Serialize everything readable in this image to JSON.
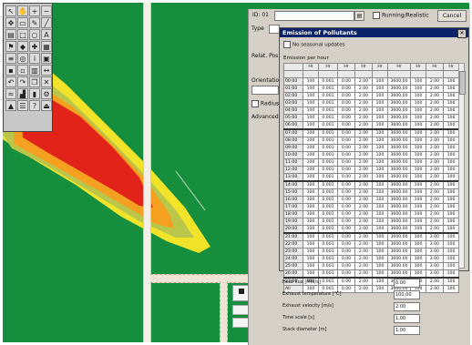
{
  "toolbox": {
    "tools": [
      {
        "icon": "pointer-icon",
        "glyph": "↖"
      },
      {
        "icon": "hand-icon",
        "glyph": "✋"
      },
      {
        "icon": "zoom-in-icon",
        "glyph": "+"
      },
      {
        "icon": "zoom-out-icon",
        "glyph": "−"
      },
      {
        "icon": "pan-icon",
        "glyph": "✥"
      },
      {
        "icon": "select-icon",
        "glyph": "▭"
      },
      {
        "icon": "pencil-icon",
        "glyph": "✎"
      },
      {
        "icon": "line-icon",
        "glyph": "╱"
      },
      {
        "icon": "ruler-icon",
        "glyph": "▤"
      },
      {
        "icon": "rect-icon",
        "glyph": "□"
      },
      {
        "icon": "ellipse-icon",
        "glyph": "○"
      },
      {
        "icon": "text-icon",
        "glyph": "A"
      },
      {
        "icon": "flag-icon",
        "glyph": "⚑"
      },
      {
        "icon": "source-icon",
        "glyph": "◆"
      },
      {
        "icon": "receptor-icon",
        "glyph": "✚"
      },
      {
        "icon": "grid-icon",
        "glyph": "▦"
      },
      {
        "icon": "layer-icon",
        "glyph": "≡"
      },
      {
        "icon": "contour-icon",
        "glyph": "◎"
      },
      {
        "icon": "info-icon",
        "glyph": "i"
      },
      {
        "icon": "print-icon",
        "glyph": "▣"
      },
      {
        "icon": "save-icon",
        "glyph": "▪"
      },
      {
        "icon": "open-icon",
        "glyph": "▫"
      },
      {
        "icon": "chart-icon",
        "glyph": "▥"
      },
      {
        "icon": "measure-icon",
        "glyph": "↔"
      },
      {
        "icon": "undo-icon",
        "glyph": "↶"
      },
      {
        "icon": "redo-icon",
        "glyph": "↷"
      },
      {
        "icon": "copy-icon",
        "glyph": "❐"
      },
      {
        "icon": "delete-icon",
        "glyph": "✕"
      },
      {
        "icon": "wind-icon",
        "glyph": "≈"
      },
      {
        "icon": "building-icon",
        "glyph": "▟"
      },
      {
        "icon": "stack-icon",
        "glyph": "▮"
      },
      {
        "icon": "settings-icon",
        "glyph": "⚙"
      },
      {
        "icon": "north-icon",
        "glyph": "▲"
      },
      {
        "icon": "legend-icon",
        "glyph": "☰"
      },
      {
        "icon": "help-icon",
        "glyph": "?"
      },
      {
        "icon": "exit-icon",
        "glyph": "⏏"
      }
    ]
  },
  "dialog": {
    "id_label": "ID: 01",
    "use_checkbox_label": "Running/Realistic",
    "cancel_label": "Cancel",
    "row_labels": [
      "Type",
      "Relat. Pos.",
      "Orientation",
      "Radius",
      "Advanced"
    ]
  },
  "popup": {
    "title": "Emission of Pollutants",
    "option_label": "No seasonal updates",
    "table_label": "Emission per hour",
    "headers": [
      "",
      "Hr",
      "Hr",
      "Hr",
      "Hr",
      "Hr",
      "Hr",
      "Hr",
      "Hr",
      "Hr"
    ],
    "subheaders": [
      "",
      "",
      "",
      "",
      "",
      "",
      "",
      "",
      "",
      ""
    ],
    "rows": [
      [
        "00:00",
        "100",
        "0.001",
        "0.00",
        "2.00",
        "100",
        "3600.00",
        "100",
        "2.00",
        "100"
      ],
      [
        "01:00",
        "100",
        "0.001",
        "0.00",
        "2.00",
        "100",
        "3600.00",
        "100",
        "2.00",
        "100"
      ],
      [
        "02:00",
        "100",
        "0.001",
        "0.00",
        "2.00",
        "100",
        "3600.00",
        "100",
        "2.00",
        "100"
      ],
      [
        "03:00",
        "100",
        "0.001",
        "0.00",
        "2.00",
        "100",
        "3600.00",
        "100",
        "2.00",
        "100"
      ],
      [
        "04:00",
        "100",
        "0.001",
        "0.00",
        "2.00",
        "100",
        "3600.00",
        "100",
        "2.00",
        "100"
      ],
      [
        "05:00",
        "100",
        "0.001",
        "0.00",
        "2.00",
        "100",
        "3600.00",
        "100",
        "2.00",
        "100"
      ],
      [
        "06:00",
        "100",
        "0.001",
        "0.00",
        "2.00",
        "100",
        "3600.00",
        "100",
        "2.00",
        "100"
      ],
      [
        "07:00",
        "100",
        "0.001",
        "0.00",
        "2.00",
        "100",
        "3600.00",
        "100",
        "2.00",
        "100"
      ],
      [
        "08:00",
        "100",
        "0.001",
        "0.00",
        "2.00",
        "100",
        "3600.00",
        "100",
        "2.00",
        "100"
      ],
      [
        "09:00",
        "100",
        "0.001",
        "0.00",
        "2.00",
        "100",
        "3600.00",
        "100",
        "2.00",
        "100"
      ],
      [
        "10:00",
        "100",
        "0.001",
        "0.00",
        "2.00",
        "100",
        "3600.00",
        "100",
        "2.00",
        "100"
      ],
      [
        "11:00",
        "100",
        "0.001",
        "0.00",
        "2.00",
        "100",
        "3600.00",
        "100",
        "2.00",
        "100"
      ],
      [
        "12:00",
        "100",
        "0.001",
        "0.00",
        "2.00",
        "100",
        "3600.00",
        "100",
        "2.00",
        "100"
      ],
      [
        "13:00",
        "100",
        "0.001",
        "0.00",
        "2.00",
        "100",
        "3600.00",
        "100",
        "2.00",
        "100"
      ],
      [
        "14:00",
        "100",
        "0.001",
        "0.00",
        "2.00",
        "100",
        "3600.00",
        "100",
        "2.00",
        "100"
      ],
      [
        "15:00",
        "100",
        "0.001",
        "0.00",
        "2.00",
        "100",
        "3600.00",
        "100",
        "2.00",
        "100"
      ],
      [
        "16:00",
        "100",
        "0.001",
        "0.00",
        "2.00",
        "100",
        "3600.00",
        "100",
        "2.00",
        "100"
      ],
      [
        "17:00",
        "100",
        "0.001",
        "0.00",
        "2.00",
        "100",
        "3600.00",
        "100",
        "2.00",
        "100"
      ],
      [
        "18:00",
        "100",
        "0.001",
        "0.00",
        "2.00",
        "100",
        "3600.00",
        "100",
        "2.00",
        "100"
      ],
      [
        "19:00",
        "100",
        "0.001",
        "0.00",
        "2.00",
        "100",
        "3600.00",
        "100",
        "2.00",
        "100"
      ],
      [
        "20:00",
        "100",
        "0.001",
        "0.00",
        "2.00",
        "100",
        "3600.00",
        "100",
        "2.00",
        "100"
      ],
      [
        "21:00",
        "100",
        "0.001",
        "0.00",
        "2.00",
        "100",
        "3600.00",
        "100",
        "2.00",
        "100"
      ],
      [
        "22:00",
        "100",
        "0.001",
        "0.00",
        "2.00",
        "100",
        "3600.00",
        "100",
        "2.00",
        "100"
      ],
      [
        "23:00",
        "100",
        "0.001",
        "0.00",
        "2.00",
        "100",
        "3600.00",
        "100",
        "2.00",
        "100"
      ],
      [
        "24:00",
        "100",
        "0.001",
        "0.00",
        "2.00",
        "100",
        "3600.00",
        "100",
        "2.00",
        "100"
      ],
      [
        "25:00",
        "100",
        "0.001",
        "0.00",
        "2.00",
        "100",
        "3600.00",
        "100",
        "2.00",
        "100"
      ],
      [
        "26:00",
        "100",
        "0.001",
        "0.00",
        "2.00",
        "100",
        "3600.00",
        "100",
        "2.00",
        "100"
      ],
      [
        "27:00",
        "100",
        "0.001",
        "0.00",
        "2.00",
        "100",
        "3600.00",
        "100",
        "2.00",
        "100"
      ],
      [
        "All",
        "100",
        "0.001",
        "0.00",
        "2.00",
        "100",
        "3600.00",
        "100",
        "2.00",
        "100"
      ]
    ],
    "separator_rows": [
      7,
      14,
      21,
      27
    ]
  },
  "params": [
    {
      "label": "Heat flux [MW/s]",
      "value": "0.00"
    },
    {
      "label": "Exhaust temperature [°C]",
      "value": "100.00"
    },
    {
      "label": "Exhaust velocity [m/s]",
      "value": "2.00"
    },
    {
      "label": "Time scale [s]",
      "value": "1.00"
    },
    {
      "label": "Stack diameter [m]",
      "value": "1.00"
    }
  ],
  "colors": {
    "grass": "#158f3e",
    "plume_outer": "#f0e32a",
    "plume_mid": "#c3d23a",
    "plume_orange": "#f5a020",
    "plume_core": "#e2231a",
    "title_bar": "#0a246a"
  }
}
